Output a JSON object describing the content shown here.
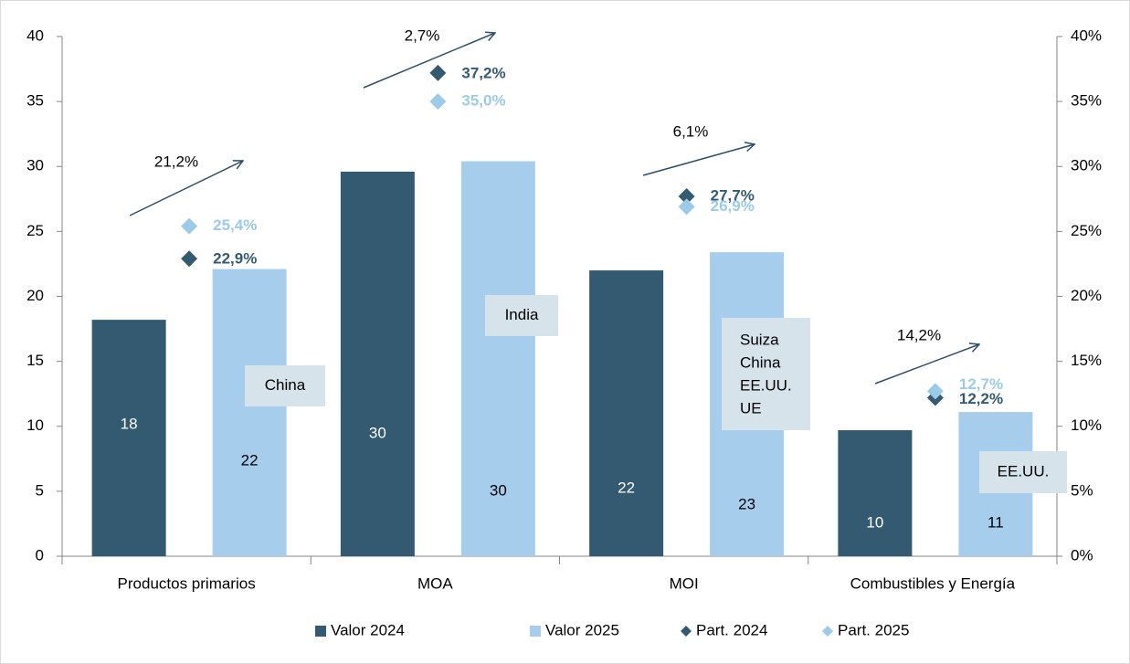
{
  "chart_data": {
    "type": "bar",
    "categories": [
      "Productos primarios",
      "MOA",
      "MOI",
      "Combustibles y Energía"
    ],
    "series": [
      {
        "name": "Valor 2024",
        "type": "bar",
        "color": "#345a72",
        "values": [
          18.2,
          29.6,
          22.0,
          9.7
        ],
        "value_labels": [
          "18",
          "30",
          "22",
          "10"
        ]
      },
      {
        "name": "Valor 2025",
        "type": "bar",
        "color": "#a6cdec",
        "values": [
          22.1,
          30.4,
          23.4,
          11.1
        ],
        "value_labels": [
          "22",
          "30",
          "23",
          "11"
        ]
      },
      {
        "name": "Part. 2024",
        "type": "scatter",
        "axis": "y2",
        "color": "#345a72",
        "values": [
          22.9,
          37.2,
          27.7,
          12.2
        ],
        "value_labels": [
          "22,9%",
          "37,2%",
          "27,7%",
          "12,2%"
        ]
      },
      {
        "name": "Part. 2025",
        "type": "scatter",
        "axis": "y2",
        "color": "#9ccbe8",
        "values": [
          25.4,
          35.0,
          26.9,
          12.7
        ],
        "value_labels": [
          "25,4%",
          "35,0%",
          "26,9%",
          "12,7%"
        ]
      }
    ],
    "ylim": [
      0,
      40
    ],
    "yticks": [
      0,
      5,
      10,
      15,
      20,
      25,
      30,
      35,
      40
    ],
    "y2lim": [
      0,
      40
    ],
    "y2ticks": [
      {
        "value": 0,
        "label": "0%"
      },
      {
        "value": 5,
        "label": "5%"
      },
      {
        "value": 10,
        "label": "10%"
      },
      {
        "value": 15,
        "label": "15%"
      },
      {
        "value": 20,
        "label": "20%"
      },
      {
        "value": 25,
        "label": "25%"
      },
      {
        "value": 30,
        "label": "30%"
      },
      {
        "value": 35,
        "label": "35%"
      },
      {
        "value": 40,
        "label": "40%"
      }
    ],
    "grid": false,
    "legend": "bottom",
    "annotations": [
      "21,2%",
      "2,7%",
      "6,1%",
      "14,2%"
    ],
    "boxes": [
      [
        "China"
      ],
      [
        "India"
      ],
      [
        "Suiza",
        "China",
        "EE.UU.",
        "UE"
      ],
      [
        "EE.UU."
      ]
    ]
  }
}
